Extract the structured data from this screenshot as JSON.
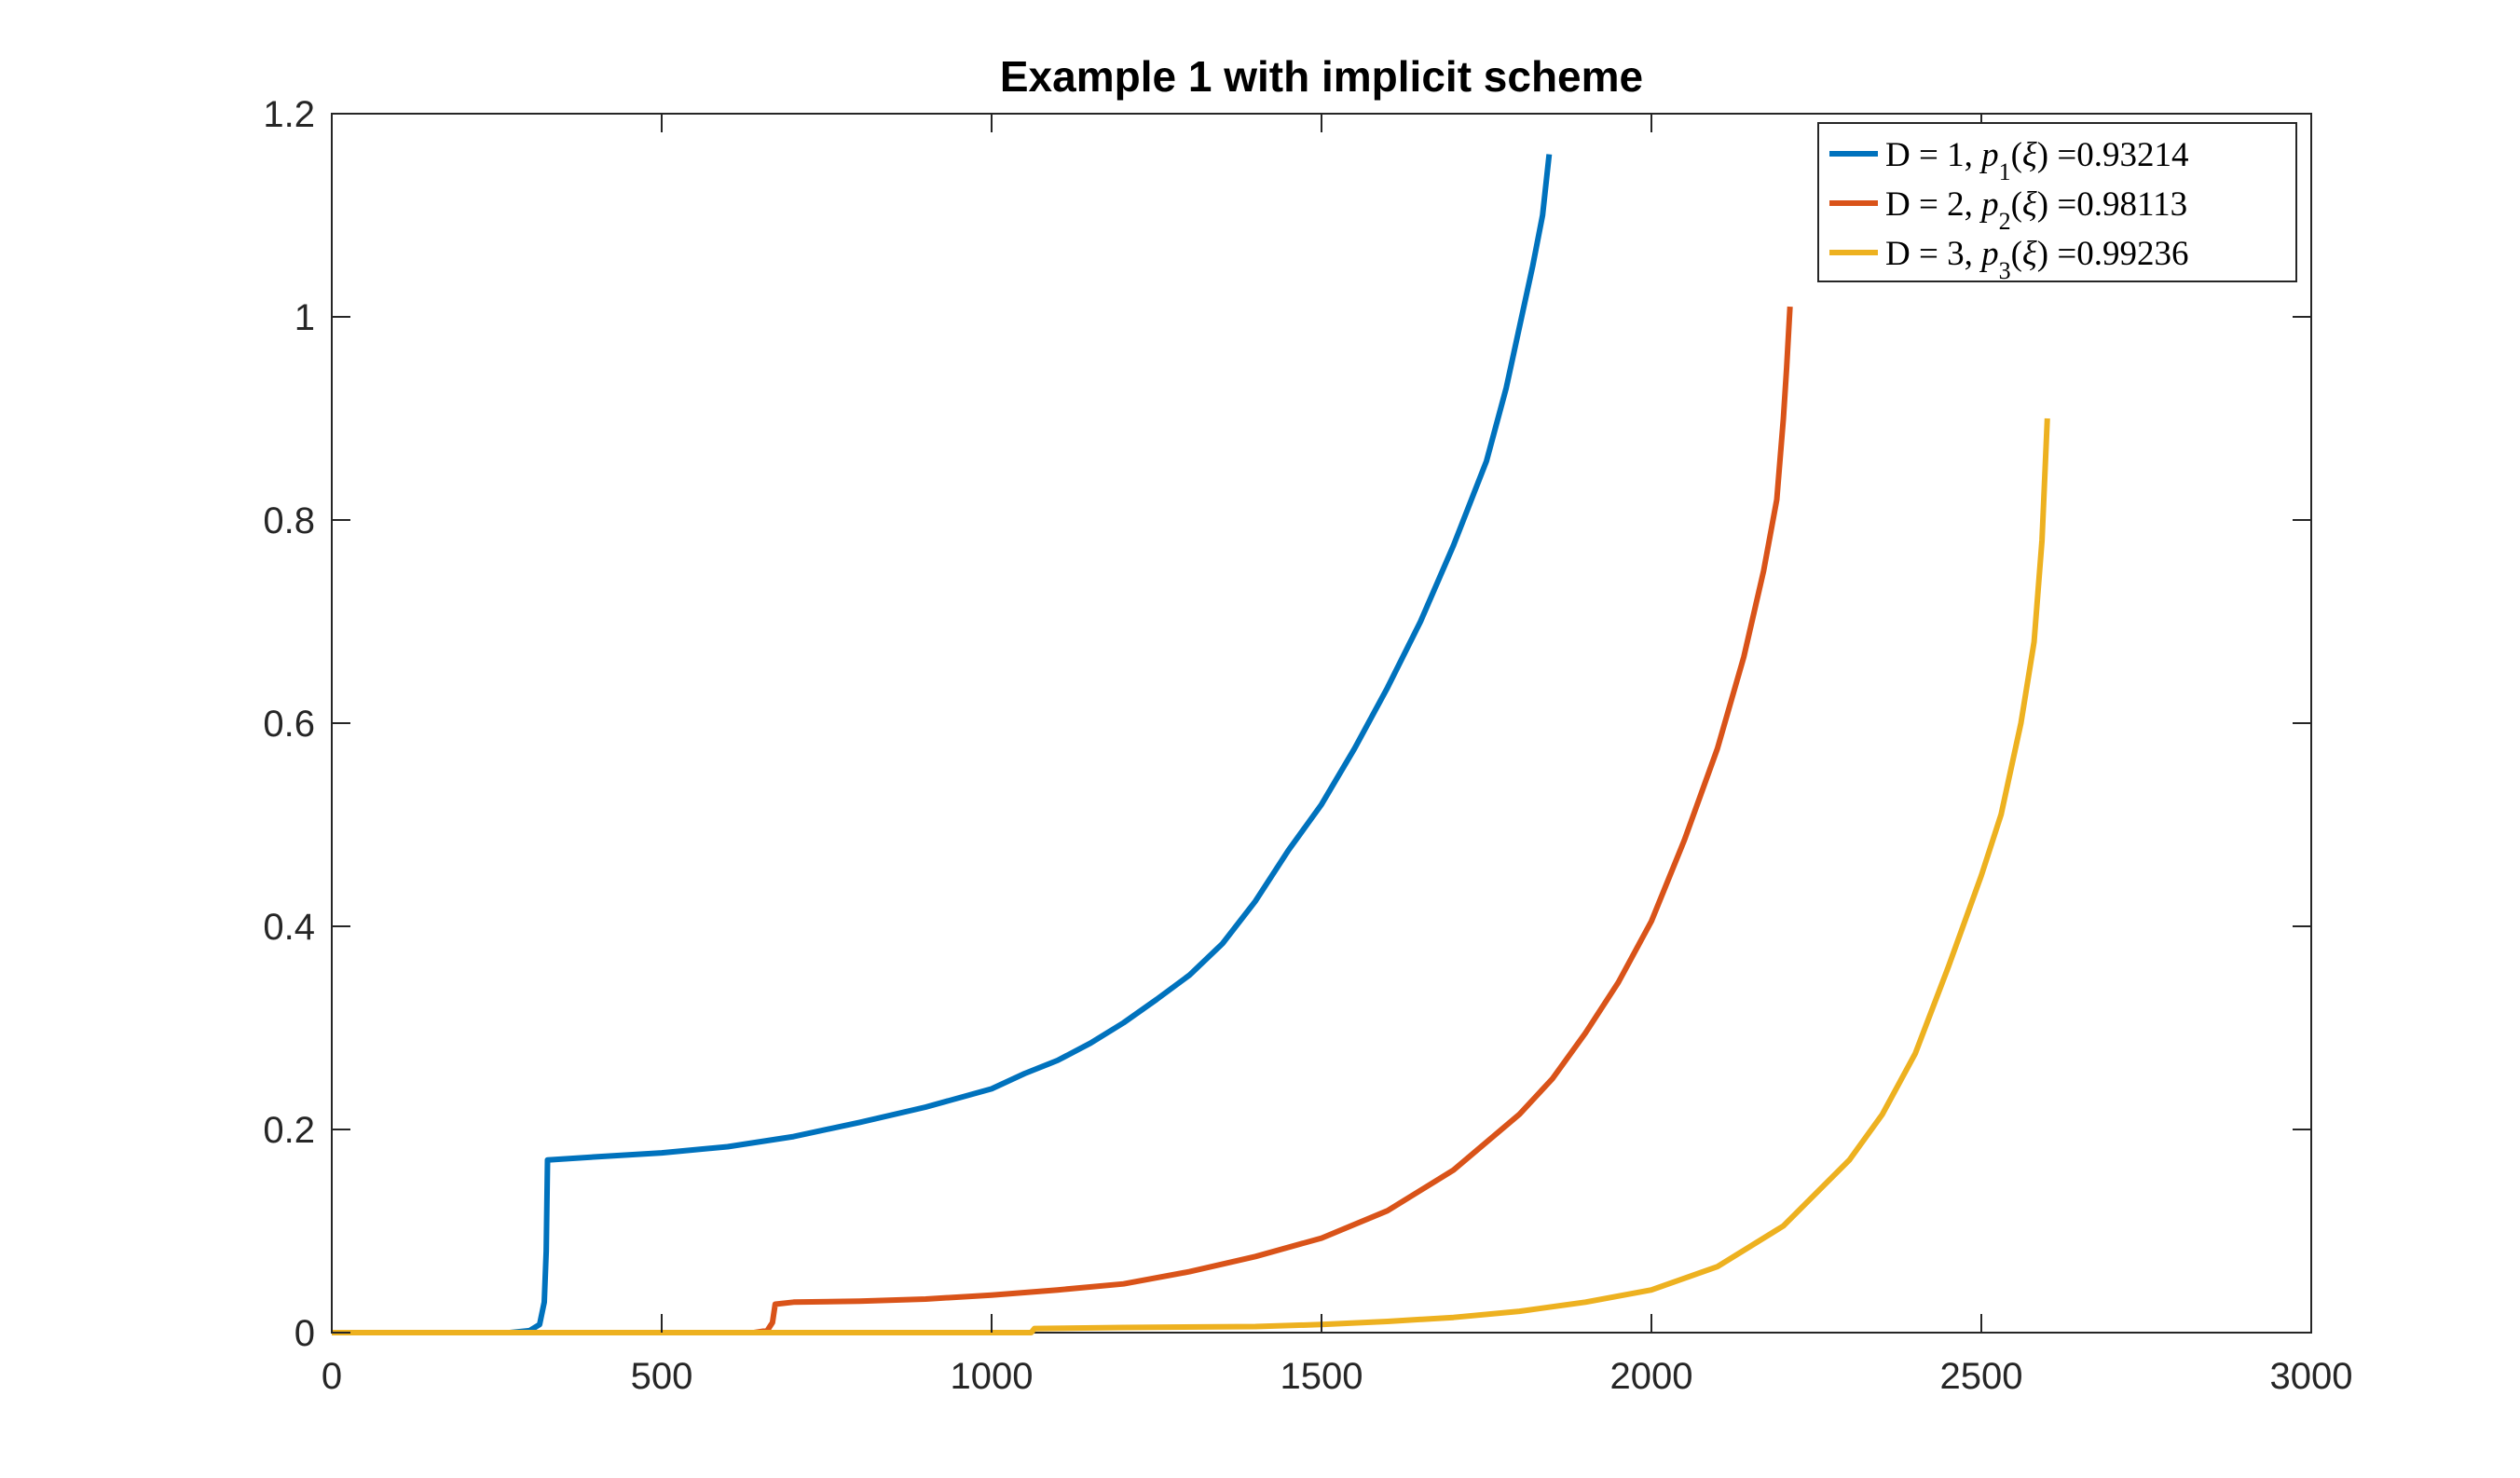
{
  "chart_data": {
    "type": "line",
    "title": "Example 1 with implicit scheme",
    "xlabel": "",
    "ylabel": "",
    "xlim": [
      0,
      3000
    ],
    "ylim": [
      0,
      1.2
    ],
    "xticks": [
      0,
      500,
      1000,
      1500,
      2000,
      2500,
      3000
    ],
    "yticks": [
      0,
      0.2,
      0.4,
      0.6,
      0.8,
      1,
      1.2
    ],
    "xtick_labels": [
      "0",
      "500",
      "1000",
      "1500",
      "2000",
      "2500",
      "3000"
    ],
    "ytick_labels": [
      "0",
      "0.2",
      "0.4",
      "0.6",
      "0.8",
      "1",
      "1.2"
    ],
    "grid": false,
    "box": true,
    "legend_position": "top-right",
    "series": [
      {
        "name": "D = 1, p1(ξ) =0.93214",
        "legend": {
          "d": "1",
          "sub": "1",
          "value": "0.93214"
        },
        "color": "#0072BD",
        "points": [
          [
            0,
            0
          ],
          [
            270,
            0
          ],
          [
            300,
            0.002
          ],
          [
            315,
            0.008
          ],
          [
            322,
            0.03
          ],
          [
            325,
            0.08
          ],
          [
            327,
            0.17
          ],
          [
            400,
            0.173
          ],
          [
            500,
            0.177
          ],
          [
            600,
            0.183
          ],
          [
            700,
            0.193
          ],
          [
            800,
            0.207
          ],
          [
            900,
            0.222
          ],
          [
            1000,
            0.24
          ],
          [
            1050,
            0.255
          ],
          [
            1100,
            0.268
          ],
          [
            1150,
            0.285
          ],
          [
            1200,
            0.305
          ],
          [
            1250,
            0.328
          ],
          [
            1300,
            0.352
          ],
          [
            1350,
            0.383
          ],
          [
            1400,
            0.425
          ],
          [
            1450,
            0.475
          ],
          [
            1500,
            0.52
          ],
          [
            1550,
            0.575
          ],
          [
            1600,
            0.635
          ],
          [
            1650,
            0.7
          ],
          [
            1700,
            0.775
          ],
          [
            1750,
            0.858
          ],
          [
            1780,
            0.93
          ],
          [
            1800,
            0.99
          ],
          [
            1820,
            1.05
          ],
          [
            1835,
            1.1
          ],
          [
            1845,
            1.16
          ]
        ]
      },
      {
        "name": "D = 2, p2(ξ) =0.98113",
        "legend": {
          "d": "2",
          "sub": "2",
          "value": "0.98113"
        },
        "color": "#D95319",
        "points": [
          [
            0,
            0
          ],
          [
            640,
            0
          ],
          [
            660,
            0.002
          ],
          [
            668,
            0.01
          ],
          [
            672,
            0.028
          ],
          [
            700,
            0.03
          ],
          [
            800,
            0.031
          ],
          [
            900,
            0.033
          ],
          [
            1000,
            0.037
          ],
          [
            1100,
            0.042
          ],
          [
            1200,
            0.048
          ],
          [
            1300,
            0.06
          ],
          [
            1400,
            0.075
          ],
          [
            1500,
            0.093
          ],
          [
            1600,
            0.12
          ],
          [
            1700,
            0.16
          ],
          [
            1800,
            0.215
          ],
          [
            1850,
            0.25
          ],
          [
            1900,
            0.295
          ],
          [
            1950,
            0.345
          ],
          [
            2000,
            0.405
          ],
          [
            2050,
            0.485
          ],
          [
            2100,
            0.575
          ],
          [
            2140,
            0.665
          ],
          [
            2170,
            0.75
          ],
          [
            2190,
            0.82
          ],
          [
            2200,
            0.9
          ],
          [
            2205,
            0.95
          ],
          [
            2210,
            1.01
          ]
        ]
      },
      {
        "name": "D = 3, p3(ξ) =0.99236",
        "legend": {
          "d": "3",
          "sub": "3",
          "value": "0.99236"
        },
        "color": "#EDB120",
        "points": [
          [
            0,
            0
          ],
          [
            1060,
            0
          ],
          [
            1065,
            0.004
          ],
          [
            1200,
            0.005
          ],
          [
            1400,
            0.006
          ],
          [
            1500,
            0.008
          ],
          [
            1600,
            0.011
          ],
          [
            1700,
            0.015
          ],
          [
            1800,
            0.021
          ],
          [
            1900,
            0.03
          ],
          [
            2000,
            0.042
          ],
          [
            2100,
            0.065
          ],
          [
            2200,
            0.105
          ],
          [
            2300,
            0.17
          ],
          [
            2350,
            0.215
          ],
          [
            2400,
            0.275
          ],
          [
            2450,
            0.36
          ],
          [
            2500,
            0.45
          ],
          [
            2530,
            0.51
          ],
          [
            2560,
            0.6
          ],
          [
            2580,
            0.68
          ],
          [
            2592,
            0.78
          ],
          [
            2600,
            0.9
          ]
        ]
      }
    ]
  }
}
